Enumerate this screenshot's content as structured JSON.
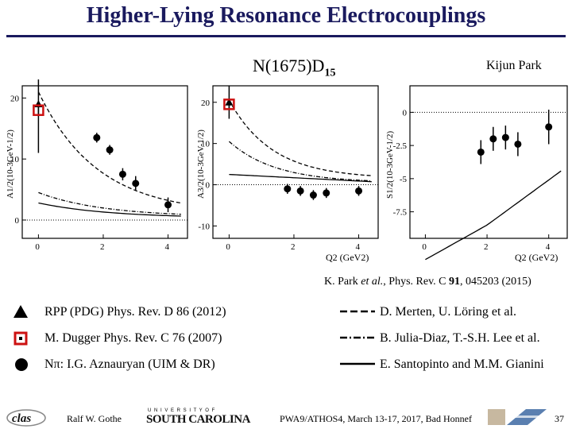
{
  "slide": {
    "title": "Higher-Lying Resonance Electrocouplings",
    "resonance_label": "N(1675)D",
    "resonance_sub": "15",
    "author": "Kijun Park",
    "reference_pre": "K. Park ",
    "reference_etal": "et al.",
    "reference_post": ", Phys. Rev. C ",
    "reference_vol": "91",
    "reference_tail": ", 045203 (2015)"
  },
  "legend": {
    "left": [
      {
        "symbol": "triangle-icon",
        "text": "RPP (PDG) Phys. Rev. D 86 (2012)"
      },
      {
        "symbol": "open-square-icon",
        "text": "M. Dugger Phys. Rev. C 76 (2007)"
      },
      {
        "symbol": "filled-circle-icon",
        "text": "Nπ: I.G. Aznauryan (UIM & DR)"
      }
    ],
    "right": [
      {
        "symbol": "dashed-line-icon",
        "text": "D. Merten, U. Löring et al."
      },
      {
        "symbol": "dash-dot-line-icon",
        "text": "B. Julia-Diaz, T.-S.H. Lee et al."
      },
      {
        "symbol": "solid-line-icon",
        "text": "E. Santopinto and M.M. Gianini"
      }
    ]
  },
  "footer": {
    "presenter": "Ralf  W. Gothe",
    "university_top": "U N I V E R S I T Y  O F",
    "university": "SOUTH CAROLINA",
    "conference": "PWA9/ATHOS4, March 13-17, 2017, Bad Honnef",
    "page": "37",
    "logo_text": "clas"
  },
  "colors": {
    "title": "#1a1a5e",
    "square": "#cc1111",
    "accent": "#b03030"
  },
  "chart_data": [
    {
      "type": "scatter",
      "ylabel": "A1/2(10-3GeV-1/2)",
      "xlabel": "",
      "x_ticks": [
        "0",
        "2",
        "4"
      ],
      "y_ticks": [
        "0",
        "10",
        "20"
      ],
      "xlim": [
        -0.5,
        4.6
      ],
      "ylim": [
        -3,
        22
      ],
      "points": [
        {
          "name": "Nπ",
          "x": [
            1.8,
            2.2,
            2.6,
            3.0,
            4.0
          ],
          "y": [
            13.5,
            11.5,
            7.5,
            6.0,
            2.5
          ],
          "err": [
            0.8,
            0.8,
            1.0,
            1.2,
            1.2
          ]
        },
        {
          "name": "RPP (PDG)",
          "x": [
            0.0
          ],
          "y": [
            19.0
          ],
          "err": [
            8.0
          ]
        },
        {
          "name": "Dugger",
          "x": [
            0.0
          ],
          "y": [
            18.0
          ],
          "err": [
            1.0
          ]
        }
      ]
    },
    {
      "type": "scatter",
      "ylabel": "A3/2(10-3GeV-1/2)",
      "xlabel": "Q2 (GeV2)",
      "x_ticks": [
        "0",
        "2",
        "4"
      ],
      "y_ticks": [
        "-10",
        "0",
        "10",
        "20"
      ],
      "xlim": [
        -0.5,
        4.6
      ],
      "ylim": [
        -13,
        24
      ],
      "points": [
        {
          "name": "Nπ",
          "x": [
            1.8,
            2.2,
            2.6,
            3.0,
            4.0
          ],
          "y": [
            -1.0,
            -1.5,
            -2.5,
            -2.0,
            -1.5
          ],
          "err": [
            1.2,
            1.2,
            1.2,
            1.2,
            1.2
          ]
        },
        {
          "name": "RPP (PDG)",
          "x": [
            0.0
          ],
          "y": [
            20.0
          ],
          "err": [
            4.0
          ]
        },
        {
          "name": "Dugger",
          "x": [
            0.0
          ],
          "y": [
            19.5
          ],
          "err": [
            1.0
          ]
        }
      ]
    },
    {
      "type": "scatter",
      "ylabel": "S1/2(10-3GeV-1/2)",
      "xlabel": "Q2 (GeV2)",
      "x_ticks": [
        "0",
        "2",
        "4"
      ],
      "y_ticks": [
        "0",
        "-2.5",
        "-5",
        "-7.5"
      ],
      "xlim": [
        -0.5,
        4.6
      ],
      "ylim": [
        -9.5,
        2
      ],
      "points": [
        {
          "name": "Nπ",
          "x": [
            1.8,
            2.2,
            2.6,
            3.0,
            4.0
          ],
          "y": [
            -3.0,
            -2.0,
            -1.9,
            -2.4,
            -1.1
          ],
          "err": [
            0.9,
            0.9,
            0.9,
            0.9,
            1.3
          ]
        }
      ]
    }
  ]
}
